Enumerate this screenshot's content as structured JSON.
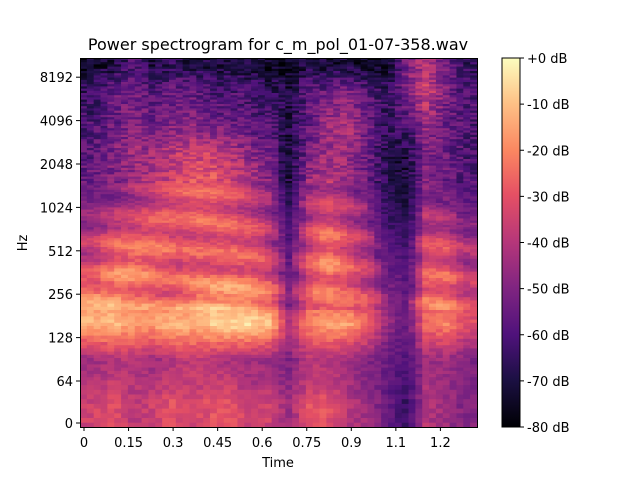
{
  "chart_data": {
    "type": "heatmap",
    "title": "Power spectrogram for c_m_pol_01-07-358.wav",
    "xlabel": "Time",
    "ylabel": "Hz",
    "xlim": [
      0,
      1.32
    ],
    "x_ticks": [
      "0",
      "0.15",
      "0.3",
      "0.45",
      "0.6",
      "0.75",
      "0.9",
      "1.1",
      "1.2"
    ],
    "x_tick_values": [
      0,
      0.15,
      0.3,
      0.45,
      0.6,
      0.75,
      0.9,
      1.05,
      1.2
    ],
    "y_scale": "symlog-base2",
    "y_ticks": [
      "0",
      "64",
      "128",
      "256",
      "512",
      "1024",
      "2048",
      "4096",
      "8192"
    ],
    "y_tick_values": [
      0,
      64,
      128,
      256,
      512,
      1024,
      2048,
      4096,
      8192
    ],
    "colormap": "magma",
    "colorbar": {
      "range_db": [
        -80,
        0
      ],
      "ticks": [
        "+0 dB",
        "-10 dB",
        "-20 dB",
        "-30 dB",
        "-40 dB",
        "-50 dB",
        "-60 dB",
        "-70 dB",
        "-80 dB"
      ]
    },
    "grid": false,
    "approx_power_db": {
      "time_s": [
        0.03,
        0.1,
        0.17,
        0.23,
        0.3,
        0.36,
        0.43,
        0.5,
        0.56,
        0.63,
        0.69,
        0.76,
        0.82,
        0.89,
        0.96,
        1.02,
        1.09,
        1.15,
        1.22,
        1.28
      ],
      "freq_hz": [
        32,
        90,
        160,
        250,
        400,
        650,
        1000,
        1600,
        2500,
        4000,
        6500,
        10000
      ],
      "db": [
        [
          -35,
          -30,
          -40,
          -35,
          -30,
          -35,
          -30,
          -30,
          -35,
          -35,
          -45,
          -30,
          -30,
          -40,
          -45,
          -55,
          -65,
          -40,
          -45,
          -50
        ],
        [
          -45,
          -40,
          -40,
          -45,
          -40,
          -38,
          -40,
          -42,
          -45,
          -45,
          -50,
          -40,
          -40,
          -45,
          -50,
          -55,
          -60,
          -45,
          -45,
          -50
        ],
        [
          -12,
          -10,
          -15,
          -15,
          -10,
          -12,
          -8,
          -5,
          -5,
          -10,
          -40,
          -20,
          -15,
          -15,
          -25,
          -45,
          -55,
          -25,
          -20,
          -30
        ],
        [
          -20,
          -20,
          -25,
          -25,
          -28,
          -20,
          -15,
          -15,
          -18,
          -25,
          -50,
          -30,
          -25,
          -30,
          -35,
          -50,
          -55,
          -25,
          -25,
          -35
        ],
        [
          -35,
          -25,
          -20,
          -25,
          -30,
          -30,
          -30,
          -28,
          -30,
          -35,
          -55,
          -30,
          -20,
          -30,
          -40,
          -55,
          -60,
          -30,
          -30,
          -40
        ],
        [
          -40,
          -30,
          -28,
          -25,
          -30,
          -30,
          -28,
          -28,
          -30,
          -40,
          -60,
          -35,
          -25,
          -35,
          -45,
          -60,
          -65,
          -35,
          -35,
          -45
        ],
        [
          -50,
          -45,
          -40,
          -35,
          -30,
          -28,
          -28,
          -32,
          -38,
          -45,
          -65,
          -40,
          -35,
          -40,
          -50,
          -65,
          -70,
          -45,
          -48,
          -55
        ],
        [
          -55,
          -50,
          -45,
          -40,
          -35,
          -30,
          -30,
          -35,
          -40,
          -50,
          -70,
          -45,
          -40,
          -45,
          -55,
          -68,
          -72,
          -50,
          -55,
          -60
        ],
        [
          -58,
          -50,
          -45,
          -45,
          -40,
          -35,
          -35,
          -40,
          -50,
          -55,
          -72,
          -50,
          -45,
          -45,
          -55,
          -68,
          -70,
          -50,
          -55,
          -60
        ],
        [
          -60,
          -55,
          -50,
          -55,
          -50,
          -50,
          -55,
          -55,
          -58,
          -60,
          -70,
          -55,
          -45,
          -40,
          -55,
          -65,
          -60,
          -45,
          -55,
          -60
        ],
        [
          -65,
          -55,
          -50,
          -60,
          -55,
          -55,
          -60,
          -60,
          -62,
          -65,
          -70,
          -55,
          -55,
          -50,
          -60,
          -65,
          -50,
          -35,
          -50,
          -60
        ],
        [
          -75,
          -70,
          -60,
          -70,
          -65,
          -70,
          -70,
          -72,
          -70,
          -75,
          -75,
          -70,
          -72,
          -72,
          -75,
          -75,
          -50,
          -40,
          -55,
          -65
        ]
      ]
    }
  }
}
